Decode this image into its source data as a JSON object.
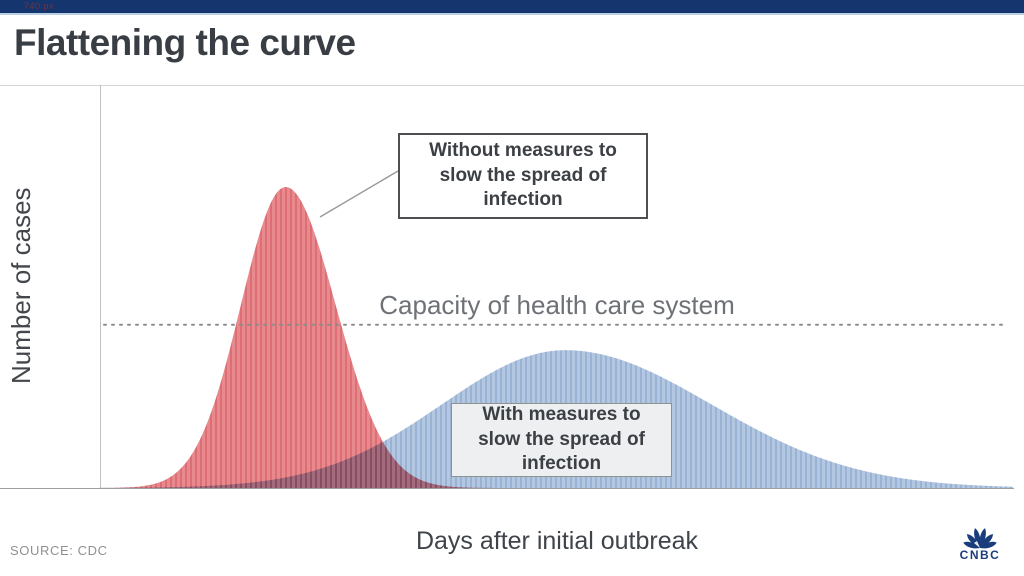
{
  "top_bar": {
    "annotation": "740 px",
    "background": "#14356d"
  },
  "header": {
    "title": "Flattening the curve"
  },
  "chart_data": {
    "type": "area",
    "title": "Flattening the curve",
    "xlabel": "Days after initial outbreak",
    "ylabel": "Number of cases",
    "grid": false,
    "axis_ticks": "none",
    "capacity_line": {
      "label": "Capacity of health care system",
      "height_frac": 0.405,
      "style": "dotted",
      "color": "#8c8c8c"
    },
    "series": [
      {
        "name": "without-measures",
        "label": "Without measures to slow the spread of infection",
        "label_lines": [
          "Without measures to",
          "slow the spread of",
          "infection"
        ],
        "fill": "#e8898d",
        "stripe": "#dc6f75",
        "peak_x_frac": 0.203,
        "peak_height_frac": 0.747,
        "sigma_left_frac": 0.049,
        "sigma_right_frac": 0.055
      },
      {
        "name": "with-measures",
        "label": "With measures to slow the spread of infection",
        "label_lines": [
          "With measures to",
          "slow the spread of",
          "infection"
        ],
        "fill": "#b4c7e1",
        "stripe": "#9ab3d5",
        "peak_x_frac": 0.509,
        "peak_height_frac": 0.342,
        "sigma_left_frac": 0.135,
        "sigma_right_frac": 0.16
      }
    ]
  },
  "footer": {
    "source": "SOURCE: CDC",
    "logo_text": "CNBC",
    "logo_color": "#1a3d7c"
  }
}
